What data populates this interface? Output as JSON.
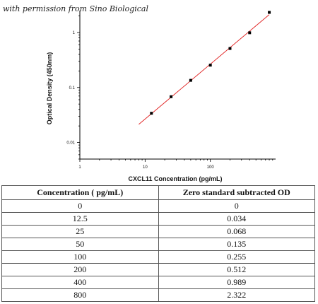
{
  "watermark": "with permission from Sino Biological",
  "chart_data": {
    "type": "scatter",
    "xlabel": "CXCL11 Concentration (pg/mL)",
    "ylabel": "Optical Density (450nm)",
    "x_scale": "log",
    "y_scale": "log",
    "xlim": [
      1,
      1000
    ],
    "ylim": [
      0.005,
      2.5
    ],
    "x_ticks": [
      1,
      10,
      100
    ],
    "x_tick_labels": [
      "1",
      "10",
      "100"
    ],
    "y_ticks": [
      0.01,
      0.1,
      1
    ],
    "y_tick_labels": [
      "0.01",
      "0.1",
      "1"
    ],
    "points": [
      {
        "x": 12.5,
        "y": 0.034
      },
      {
        "x": 25,
        "y": 0.068
      },
      {
        "x": 50,
        "y": 0.135
      },
      {
        "x": 100,
        "y": 0.255
      },
      {
        "x": 200,
        "y": 0.512
      },
      {
        "x": 400,
        "y": 0.989
      },
      {
        "x": 800,
        "y": 2.322
      }
    ],
    "fit_line": {
      "x_start": 8,
      "x_end": 800,
      "color": "#e02020"
    },
    "marker_color": "#000000",
    "grid": false
  },
  "table": {
    "headers": [
      "Concentration ( pg/mL)",
      "Zero standard subtracted OD"
    ],
    "rows": [
      [
        "0",
        "0"
      ],
      [
        "12.5",
        "0.034"
      ],
      [
        "25",
        "0.068"
      ],
      [
        "50",
        "0.135"
      ],
      [
        "100",
        "0.255"
      ],
      [
        "200",
        "0.512"
      ],
      [
        "400",
        "0.989"
      ],
      [
        "800",
        "2.322"
      ]
    ]
  }
}
